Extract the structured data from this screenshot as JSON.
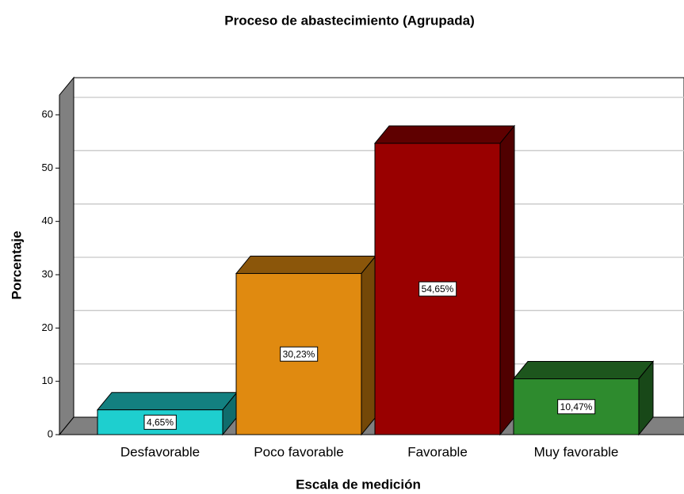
{
  "chart_data": {
    "type": "bar3d",
    "title": "Proceso de abastecimiento (Agrupada)",
    "x_label": "Escala de medición",
    "y_label": "Porcentaje",
    "categories": [
      "Desfavorable",
      "Poco favorable",
      "Favorable",
      "Muy favorable"
    ],
    "values": [
      4.65,
      30.23,
      54.65,
      10.47
    ],
    "value_labels": [
      "4,65%",
      "30,23%",
      "54,65%",
      "10,47%"
    ],
    "colors": [
      "#1ecfcf",
      "#e08a10",
      "#990000",
      "#2e8b2e"
    ],
    "ylim": [
      0,
      63.7
    ],
    "yticks": [
      0,
      10,
      20,
      30,
      40,
      50,
      60
    ],
    "grid": true
  }
}
